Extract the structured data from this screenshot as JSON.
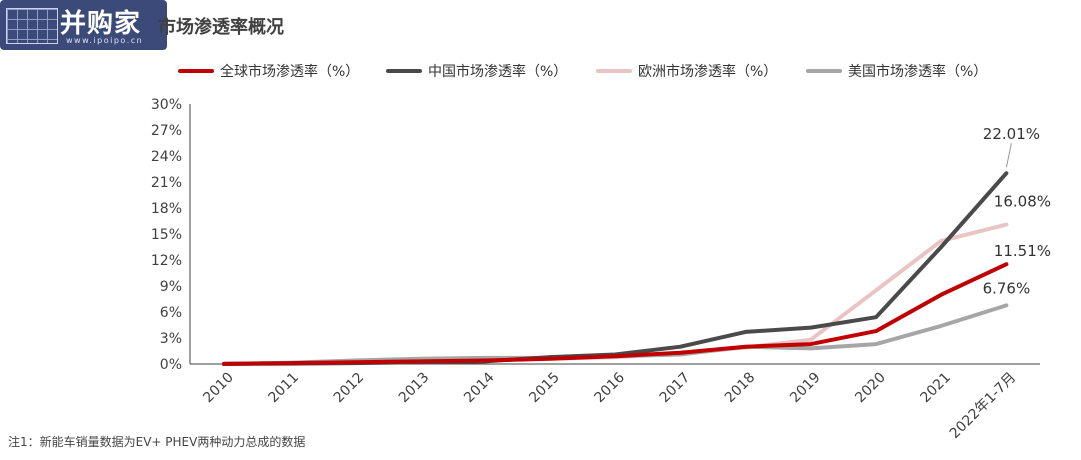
{
  "watermark": {
    "brand": "并购家",
    "url": "www.ipoipo.cn"
  },
  "title": "市场渗透率概况",
  "note": "注1：新能车销量数据为EV+ PHEV两种动力总成的数据",
  "chart_data": {
    "type": "line",
    "categories": [
      "2010",
      "2011",
      "2012",
      "2013",
      "2014",
      "2015",
      "2016",
      "2017",
      "2018",
      "2019",
      "2020",
      "2021",
      "2022年1-7月"
    ],
    "y_ticks": [
      "0%",
      "3%",
      "6%",
      "9%",
      "12%",
      "15%",
      "18%",
      "21%",
      "24%",
      "27%",
      "30%"
    ],
    "ylim": [
      0,
      30
    ],
    "grid": false,
    "legend_position": "top",
    "series": [
      {
        "name": "全球市场渗透率（%）",
        "color": "#c00000",
        "values": [
          0.01,
          0.1,
          0.2,
          0.3,
          0.4,
          0.6,
          0.9,
          1.3,
          2.0,
          2.3,
          3.8,
          8.0,
          11.51
        ],
        "end_label": "11.51%"
      },
      {
        "name": "中国市场渗透率（%）",
        "color": "#4a4a4a",
        "values": [
          0.01,
          0.05,
          0.1,
          0.2,
          0.3,
          0.8,
          1.1,
          2.0,
          3.7,
          4.2,
          5.4,
          13.5,
          22.01
        ],
        "end_label": "22.01%"
      },
      {
        "name": "欧洲市场渗透率（%）",
        "color": "#e8c4c4",
        "values": [
          0.01,
          0.1,
          0.2,
          0.4,
          0.5,
          0.6,
          0.8,
          1.2,
          1.9,
          2.8,
          8.5,
          14.2,
          16.08
        ],
        "end_label": "16.08%"
      },
      {
        "name": "美国市场渗透率（%）",
        "color": "#a6a6a6",
        "values": [
          0.01,
          0.15,
          0.4,
          0.6,
          0.7,
          0.7,
          0.9,
          1.1,
          2.0,
          1.8,
          2.3,
          4.4,
          6.76
        ],
        "end_label": "6.76%"
      }
    ]
  }
}
